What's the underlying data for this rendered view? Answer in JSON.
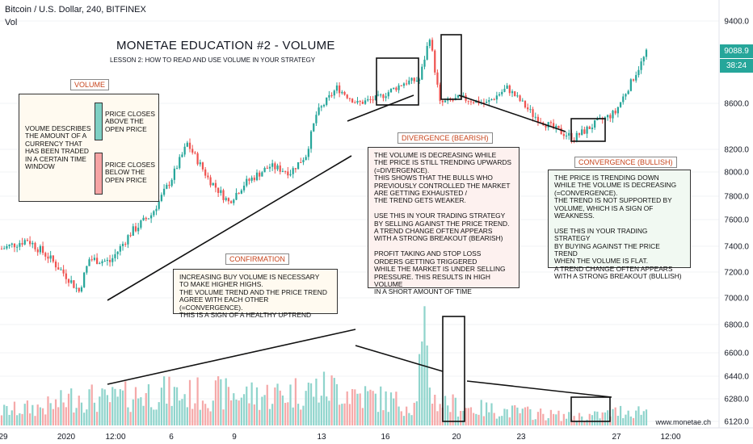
{
  "header": {
    "symbol": "Bitcoin / U.S. Dollar, 240, BITFINEX",
    "indicator": "Vol"
  },
  "annotations": {
    "title": "MONETAE EDUCATION #2 - VOLUME",
    "subtitle": "LESSON 2: HOW TO READ AND USE VOLUME IN YOUR STRATEGY",
    "volume_label": "VOLUME",
    "volume_desc": "VOUME DESCRIBES THE AMOUNT OF A CURRENCY THAT HAS BEEN TRADED IN A CERTAIN TIME WINDOW",
    "legend_up": "PRICE CLOSES ABOVE THE OPEN PRICE",
    "legend_down": "PRICE CLOSES BELOW THE OPEN PRICE",
    "confirmation_label": "CONFIRMATION",
    "confirmation_text": "INCREASING BUY VOLUME IS NECESSARY\nTO MAKE HIGHER HIGHS.\nTHE VOLUME TREND AND THE PRICE TREND\nAGREE WITH EACH OTHER (=CONVERGENCE).\nTHIS IS A SIGN OF A HEALTHY UPTREND",
    "divergence_label": "DIVERGENCE (BEARISH)",
    "divergence_text": "THE VOLUME IS DECREASING WHILE\nTHE PRICE IS STILL TRENDING UPWARDS\n(=DIVERGENCE).\nTHIS SHOWS THAT THE BULLS WHO\nPREVIOUSLY CONTROLLED THE MARKET\nARE GETTING EXHAUSTED /\nTHE TREND GETS WEAKER.\n\nUSE THIS IN YOUR TRADING STRATEGY\nBY SELLING AGAINST THE PRICE TREND.\nA TREND CHANGE OFTEN APPEARS\nWITH A STRONG BREAKOUT (BEARISH)\n\nPROFIT TAKING AND STOP LOSS\nORDERS GETTING TRIGGERED\nWHILE THE MARKET IS UNDER SELLING\nPRESSURE. THIS RESULTS IN HIGH VOLUME\nIN A SHORT AMOUNT OF TIME",
    "convergence_label": "CONVERGENCE (BULLISH)",
    "convergence_text": "THE PRICE IS TRENDING DOWN\nWHILE THE VOLUME IS DECREASING\n(=CONVERGENCE).\nTHE TREND IS NOT SUPPORTED BY\nVOLUME, WHICH IS A SIGN OF\nWEAKNESS.\n\nUSE THIS IN YOUR TRADING STRATEGY\nBY BUYING AGAINST THE PRICE TREND\nWHEN THE VOLUME IS FLAT.\nA TREND CHANGE OFTEN APPEARS\nWITH A STRONG BREAKOUT (BULLISH)",
    "watermark": "www.monetae.ch"
  },
  "price_tag": {
    "price": "9088.9",
    "countdown": "38:24"
  },
  "colors": {
    "up": "#26a69a",
    "down": "#ef5350",
    "vol_up": "#8fd4cc",
    "vol_down": "#f5a9a9",
    "tag": "#26a69a",
    "label_text": "#c7441c"
  },
  "chart_data": {
    "type": "candlestick",
    "y_axis": {
      "ticks": [
        9400,
        8600,
        8200,
        8000,
        7800,
        7600,
        7400,
        7200,
        7000,
        6800,
        6600,
        6440,
        6280,
        6120
      ],
      "labels": [
        "9400.0",
        "8600.0",
        "8200.0",
        "8000.0",
        "7800.0",
        "7600.0",
        "7400.0",
        "7200.0",
        "7000.0",
        "6800.0",
        "6600.0",
        "6440.0",
        "6280.0",
        "6120.0"
      ]
    },
    "x_axis": {
      "labels": [
        "29",
        "2020",
        "12:00",
        "6",
        "9",
        "13",
        "16",
        "20",
        "23",
        "27",
        "12:00"
      ]
    },
    "anchors": [
      [
        0,
        7380
      ],
      [
        10,
        7450
      ],
      [
        18,
        7320
      ],
      [
        26,
        7150
      ],
      [
        30,
        7050
      ],
      [
        34,
        7300
      ],
      [
        42,
        7280
      ],
      [
        50,
        7500
      ],
      [
        58,
        7640
      ],
      [
        66,
        7950
      ],
      [
        72,
        8250
      ],
      [
        80,
        7950
      ],
      [
        88,
        7750
      ],
      [
        94,
        7900
      ],
      [
        104,
        8050
      ],
      [
        112,
        8000
      ],
      [
        118,
        8150
      ],
      [
        122,
        8500
      ],
      [
        130,
        8750
      ],
      [
        138,
        8600
      ],
      [
        146,
        8650
      ],
      [
        156,
        8800
      ],
      [
        162,
        8830
      ],
      [
        166,
        9250
      ],
      [
        170,
        8600
      ],
      [
        178,
        8650
      ],
      [
        188,
        8600
      ],
      [
        196,
        8750
      ],
      [
        206,
        8500
      ],
      [
        214,
        8380
      ],
      [
        222,
        8300
      ],
      [
        230,
        8420
      ],
      [
        238,
        8520
      ],
      [
        244,
        8800
      ],
      [
        250,
        9088.9
      ]
    ],
    "volume_anchors": [
      [
        0,
        40
      ],
      [
        20,
        55
      ],
      [
        30,
        85
      ],
      [
        40,
        70
      ],
      [
        60,
        95
      ],
      [
        70,
        85
      ],
      [
        80,
        90
      ],
      [
        100,
        85
      ],
      [
        110,
        90
      ],
      [
        120,
        100
      ],
      [
        130,
        105
      ],
      [
        140,
        85
      ],
      [
        150,
        70
      ],
      [
        160,
        55
      ],
      [
        162,
        155
      ],
      [
        164,
        220
      ],
      [
        166,
        130
      ],
      [
        168,
        70
      ],
      [
        180,
        50
      ],
      [
        200,
        38
      ],
      [
        210,
        32
      ],
      [
        220,
        25
      ],
      [
        232,
        28
      ],
      [
        240,
        40
      ],
      [
        250,
        42
      ]
    ],
    "volume_scale": "relative (0-250)"
  }
}
